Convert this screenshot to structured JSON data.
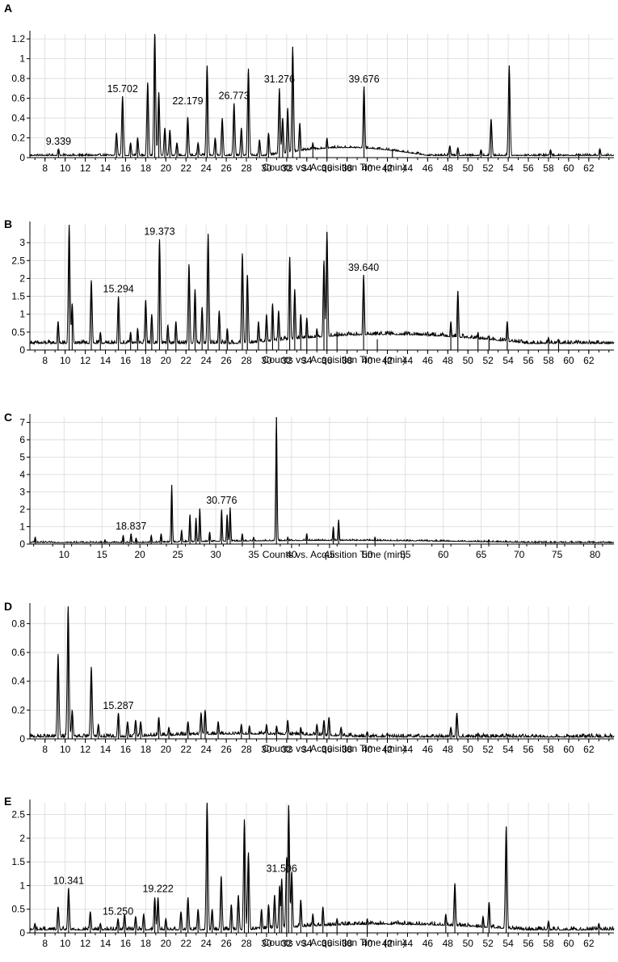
{
  "chart_data": [
    {
      "panel": "A",
      "type": "line",
      "xlabel": "Counts vs. Acquisition Time (min)",
      "ylabel": "",
      "xlim": [
        6.5,
        64.5
      ],
      "ylim": [
        0,
        1.25
      ],
      "x_ticks": [
        8,
        10,
        12,
        14,
        16,
        18,
        20,
        22,
        24,
        26,
        28,
        30,
        32,
        34,
        36,
        38,
        40,
        42,
        44,
        46,
        48,
        50,
        52,
        54,
        56,
        58,
        60,
        62
      ],
      "y_ticks": [
        0,
        0.2,
        0.4,
        0.6,
        0.8,
        1,
        1.2
      ],
      "y_tick_labels": [
        "0",
        "0.2",
        "0.4",
        "0.6",
        "0.8",
        "1",
        "1.2"
      ],
      "grid": true,
      "baseline": 0.02,
      "noise": 0.01,
      "background_hump": {
        "from": 30,
        "to": 46,
        "height": 0.08
      },
      "peaks": [
        [
          9.339,
          0.09
        ],
        [
          15.1,
          0.25
        ],
        [
          15.702,
          0.62
        ],
        [
          16.5,
          0.15
        ],
        [
          17.2,
          0.2
        ],
        [
          18.2,
          0.76
        ],
        [
          18.9,
          1.28
        ],
        [
          19.3,
          0.66
        ],
        [
          19.9,
          0.3
        ],
        [
          20.4,
          0.28
        ],
        [
          21.1,
          0.15
        ],
        [
          22.179,
          0.41
        ],
        [
          23.2,
          0.15
        ],
        [
          24.1,
          0.93
        ],
        [
          24.9,
          0.2
        ],
        [
          25.6,
          0.4
        ],
        [
          26.773,
          0.55
        ],
        [
          27.5,
          0.3
        ],
        [
          28.2,
          0.9
        ],
        [
          29.3,
          0.18
        ],
        [
          30.2,
          0.25
        ],
        [
          31.276,
          0.7
        ],
        [
          31.6,
          0.4
        ],
        [
          32.1,
          0.5
        ],
        [
          32.6,
          1.12
        ],
        [
          33.3,
          0.35
        ],
        [
          34.6,
          0.15
        ],
        [
          36,
          0.2
        ],
        [
          39.676,
          0.72
        ],
        [
          42.5,
          0.07
        ],
        [
          48.2,
          0.12
        ],
        [
          49,
          0.1
        ],
        [
          51.3,
          0.08
        ],
        [
          52.3,
          0.39
        ],
        [
          54.1,
          0.93
        ],
        [
          58.2,
          0.08
        ],
        [
          61,
          0.04
        ],
        [
          63.1,
          0.09
        ]
      ],
      "annotations": [
        {
          "text": "9.339",
          "x": 9.339,
          "y": 0.09
        },
        {
          "text": "15.702",
          "x": 15.702,
          "y": 0.62
        },
        {
          "text": "22.179",
          "x": 22.179,
          "y": 0.5
        },
        {
          "text": "26.773",
          "x": 26.773,
          "y": 0.55
        },
        {
          "text": "31.276",
          "x": 31.276,
          "y": 0.72
        },
        {
          "text": "39.676",
          "x": 39.676,
          "y": 0.72
        }
      ]
    },
    {
      "panel": "B",
      "type": "line",
      "xlabel": "Counts vs. Acquisition Time (min)",
      "ylabel": "",
      "xlim": [
        6.5,
        64.5
      ],
      "ylim": [
        0,
        3.5
      ],
      "x_ticks": [
        8,
        10,
        12,
        14,
        16,
        18,
        20,
        22,
        24,
        26,
        28,
        30,
        32,
        34,
        36,
        38,
        40,
        42,
        44,
        46,
        48,
        50,
        52,
        54,
        56,
        58,
        60,
        62
      ],
      "y_ticks": [
        0,
        0.5,
        1,
        1.5,
        2,
        2.5,
        3
      ],
      "y_tick_labels": [
        "0",
        "0.5",
        "1",
        "1.5",
        "2",
        "2.5",
        "3"
      ],
      "grid": true,
      "baseline": 0.18,
      "noise": 0.05,
      "background_hump": {
        "from": 28,
        "to": 56,
        "height": 0.25
      },
      "peaks": [
        [
          9.3,
          0.8
        ],
        [
          10.4,
          3.5
        ],
        [
          10.7,
          1.3
        ],
        [
          12.6,
          1.95
        ],
        [
          13.5,
          0.5
        ],
        [
          15.294,
          1.5
        ],
        [
          16.5,
          0.5
        ],
        [
          17.2,
          0.6
        ],
        [
          18,
          1.4
        ],
        [
          18.6,
          1.0
        ],
        [
          19.373,
          3.1
        ],
        [
          20.2,
          0.7
        ],
        [
          21,
          0.8
        ],
        [
          22.3,
          2.4
        ],
        [
          22.9,
          1.7
        ],
        [
          23.6,
          1.2
        ],
        [
          24.2,
          3.25
        ],
        [
          25.3,
          1.1
        ],
        [
          26.1,
          0.6
        ],
        [
          27.6,
          2.7
        ],
        [
          28.1,
          2.1
        ],
        [
          29.2,
          0.8
        ],
        [
          30,
          1.0
        ],
        [
          30.6,
          1.3
        ],
        [
          31.2,
          1.1
        ],
        [
          32.3,
          2.6
        ],
        [
          32.8,
          1.7
        ],
        [
          33.4,
          1.0
        ],
        [
          34,
          0.9
        ],
        [
          35,
          0.6
        ],
        [
          35.7,
          2.5
        ],
        [
          36,
          3.3
        ],
        [
          37,
          0.5
        ],
        [
          39.64,
          2.1
        ],
        [
          41,
          0.3
        ],
        [
          48.3,
          0.8
        ],
        [
          49,
          1.65
        ],
        [
          51,
          0.5
        ],
        [
          52.1,
          0.4
        ],
        [
          53.9,
          0.8
        ],
        [
          58,
          0.35
        ],
        [
          59,
          0.3
        ]
      ],
      "annotations": [
        {
          "text": "15.294",
          "x": 15.294,
          "y": 1.5
        },
        {
          "text": "19.373",
          "x": 19.373,
          "y": 3.1
        },
        {
          "text": "39.640",
          "x": 39.64,
          "y": 2.1
        }
      ]
    },
    {
      "panel": "C",
      "type": "line",
      "xlabel": "Counts vs. Acquisition Time (min)",
      "ylabel": "",
      "xlim": [
        5.5,
        82.5
      ],
      "ylim": [
        0,
        7.3
      ],
      "x_ticks": [
        10,
        15,
        20,
        25,
        30,
        35,
        40,
        45,
        50,
        55,
        60,
        65,
        70,
        75,
        80
      ],
      "y_ticks": [
        0,
        1,
        2,
        3,
        4,
        5,
        6,
        7
      ],
      "y_tick_labels": [
        "0",
        "1",
        "2",
        "3",
        "4",
        "5",
        "6",
        "7"
      ],
      "grid": true,
      "baseline": 0.08,
      "noise": 0.04,
      "background_hump": {
        "from": 20,
        "to": 72,
        "height": 0.12
      },
      "peaks": [
        [
          6.2,
          0.4
        ],
        [
          15.4,
          0.25
        ],
        [
          17.8,
          0.5
        ],
        [
          18.837,
          0.6
        ],
        [
          19.5,
          0.35
        ],
        [
          21.5,
          0.5
        ],
        [
          22.8,
          0.6
        ],
        [
          24.2,
          3.4
        ],
        [
          25.5,
          0.8
        ],
        [
          26.6,
          1.7
        ],
        [
          27.4,
          1.5
        ],
        [
          27.9,
          2.05
        ],
        [
          29.2,
          0.7
        ],
        [
          30.776,
          1.98
        ],
        [
          31.5,
          1.7
        ],
        [
          31.9,
          2.1
        ],
        [
          33.5,
          0.6
        ],
        [
          35,
          0.4
        ],
        [
          38,
          7.3
        ],
        [
          39.5,
          0.4
        ],
        [
          42,
          0.6
        ],
        [
          45.5,
          1.0
        ],
        [
          46.2,
          1.4
        ],
        [
          51,
          0.4
        ],
        [
          66,
          0.25
        ]
      ],
      "annotations": [
        {
          "text": "18.837",
          "x": 18.837,
          "y": 0.6
        },
        {
          "text": "30.776",
          "x": 30.776,
          "y": 2.1
        }
      ]
    },
    {
      "panel": "D",
      "type": "line",
      "xlabel": "Counts vs. Acquisition Time (min)",
      "ylabel": "",
      "xlim": [
        6.5,
        64.5
      ],
      "ylim": [
        0,
        0.92
      ],
      "x_ticks": [
        8,
        10,
        12,
        14,
        16,
        18,
        20,
        22,
        24,
        26,
        28,
        30,
        32,
        34,
        36,
        38,
        40,
        42,
        44,
        46,
        48,
        50,
        52,
        54,
        56,
        58,
        60,
        62
      ],
      "y_ticks": [
        0,
        0.2,
        0.4,
        0.6,
        0.8
      ],
      "y_tick_labels": [
        "0",
        "0.2",
        "0.4",
        "0.6",
        "0.8"
      ],
      "grid": true,
      "baseline": 0.012,
      "noise": 0.012,
      "background_hump": {
        "from": 16,
        "to": 40,
        "height": 0.02
      },
      "peaks": [
        [
          9.3,
          0.59
        ],
        [
          10.3,
          0.92
        ],
        [
          10.7,
          0.2
        ],
        [
          12.6,
          0.5
        ],
        [
          13.3,
          0.1
        ],
        [
          15.287,
          0.18
        ],
        [
          16.2,
          0.12
        ],
        [
          17,
          0.13
        ],
        [
          17.5,
          0.12
        ],
        [
          19.3,
          0.15
        ],
        [
          20.3,
          0.08
        ],
        [
          22.2,
          0.12
        ],
        [
          23.5,
          0.18
        ],
        [
          23.9,
          0.2
        ],
        [
          25.2,
          0.12
        ],
        [
          27.5,
          0.1
        ],
        [
          28.3,
          0.09
        ],
        [
          30,
          0.1
        ],
        [
          31,
          0.09
        ],
        [
          32.1,
          0.13
        ],
        [
          33.4,
          0.08
        ],
        [
          35,
          0.1
        ],
        [
          35.7,
          0.13
        ],
        [
          36.2,
          0.15
        ],
        [
          37.4,
          0.08
        ],
        [
          40,
          0.05
        ],
        [
          42,
          0.04
        ],
        [
          48.3,
          0.08
        ],
        [
          48.9,
          0.18
        ],
        [
          51,
          0.04
        ],
        [
          53.9,
          0.03
        ]
      ],
      "annotations": [
        {
          "text": "15.287",
          "x": 15.287,
          "y": 0.18
        }
      ]
    },
    {
      "panel": "E",
      "type": "line",
      "xlabel": "Counts vs. Acquisition Time (min)",
      "ylabel": "",
      "xlim": [
        6.5,
        64.5
      ],
      "ylim": [
        0,
        2.75
      ],
      "x_ticks": [
        8,
        10,
        12,
        14,
        16,
        18,
        20,
        22,
        24,
        26,
        28,
        30,
        32,
        34,
        36,
        38,
        40,
        42,
        44,
        46,
        48,
        50,
        52,
        54,
        56,
        58,
        60,
        62
      ],
      "y_ticks": [
        0,
        0.5,
        1,
        1.5,
        2,
        2.5
      ],
      "y_tick_labels": [
        "0",
        "0.5",
        "1",
        "1.5",
        "2",
        "2.5"
      ],
      "grid": true,
      "baseline": 0.06,
      "noise": 0.04,
      "background_hump": {
        "from": 28,
        "to": 56,
        "height": 0.12
      },
      "peaks": [
        [
          7,
          0.2
        ],
        [
          9.3,
          0.55
        ],
        [
          10.341,
          0.95
        ],
        [
          12.5,
          0.45
        ],
        [
          13.5,
          0.2
        ],
        [
          15.25,
          0.3
        ],
        [
          15.9,
          0.4
        ],
        [
          17,
          0.35
        ],
        [
          17.8,
          0.4
        ],
        [
          18.9,
          0.75
        ],
        [
          19.222,
          0.75
        ],
        [
          20,
          0.3
        ],
        [
          21.5,
          0.45
        ],
        [
          22.2,
          0.75
        ],
        [
          23.2,
          0.5
        ],
        [
          24.1,
          2.75
        ],
        [
          24.6,
          0.5
        ],
        [
          25.5,
          1.2
        ],
        [
          26.5,
          0.6
        ],
        [
          27.2,
          0.8
        ],
        [
          27.8,
          2.4
        ],
        [
          28.2,
          1.7
        ],
        [
          29.5,
          0.5
        ],
        [
          30.2,
          0.6
        ],
        [
          30.8,
          0.8
        ],
        [
          31.3,
          1.0
        ],
        [
          31.506,
          1.15
        ],
        [
          32,
          1.6
        ],
        [
          32.2,
          2.7
        ],
        [
          32.5,
          1.3
        ],
        [
          33.4,
          0.7
        ],
        [
          34.6,
          0.4
        ],
        [
          35.6,
          0.55
        ],
        [
          37,
          0.3
        ],
        [
          40,
          0.3
        ],
        [
          47.8,
          0.4
        ],
        [
          48.7,
          1.05
        ],
        [
          51.5,
          0.35
        ],
        [
          52.1,
          0.65
        ],
        [
          53.8,
          2.25
        ],
        [
          58,
          0.25
        ],
        [
          63,
          0.2
        ]
      ],
      "annotations": [
        {
          "text": "10.341",
          "x": 10.341,
          "y": 0.95
        },
        {
          "text": "15.250",
          "x": 15.25,
          "y": 0.3
        },
        {
          "text": "19.222",
          "x": 19.222,
          "y": 0.78
        },
        {
          "text": "31.506",
          "x": 31.506,
          "y": 1.2
        }
      ]
    }
  ],
  "style": {
    "trace_color": "#000000",
    "grid_color": "#d9d9d9",
    "axis_color": "#000000",
    "text_color": "#000000"
  }
}
